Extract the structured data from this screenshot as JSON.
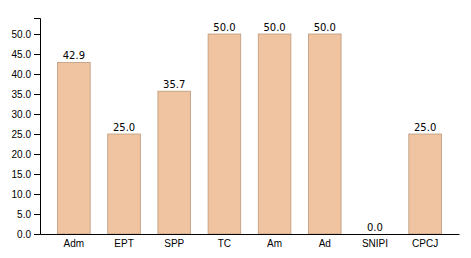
{
  "chart_data": {
    "type": "bar",
    "categories": [
      "Adm",
      "EPT",
      "SPP",
      "TC",
      "Am",
      "Ad",
      "SNIPI",
      "CPCJ"
    ],
    "values": [
      42.9,
      25.0,
      35.7,
      50.0,
      50.0,
      50.0,
      0.0,
      25.0
    ],
    "value_labels": [
      "42.9",
      "25.0",
      "35.7",
      "50.0",
      "50.0",
      "50.0",
      "0.0",
      "25.0"
    ],
    "data_labels": true,
    "color": "#F0C4A0",
    "ylim": [
      0,
      54
    ],
    "yticks": [
      {
        "value": 0.0,
        "label": "0.0"
      },
      {
        "value": 5.0,
        "label": "5.0"
      },
      {
        "value": 10.0,
        "label": "10.0"
      },
      {
        "value": 15.0,
        "label": "15.0"
      },
      {
        "value": 20.0,
        "label": "20.0"
      },
      {
        "value": 25.0,
        "label": "25.0"
      },
      {
        "value": 30.0,
        "label": "30.0"
      },
      {
        "value": 35.0,
        "label": "35.0"
      },
      {
        "value": 40.0,
        "label": "40.0"
      },
      {
        "value": 45.0,
        "label": "45.0"
      },
      {
        "value": 50.0,
        "label": "50.0"
      }
    ],
    "grid": false
  }
}
